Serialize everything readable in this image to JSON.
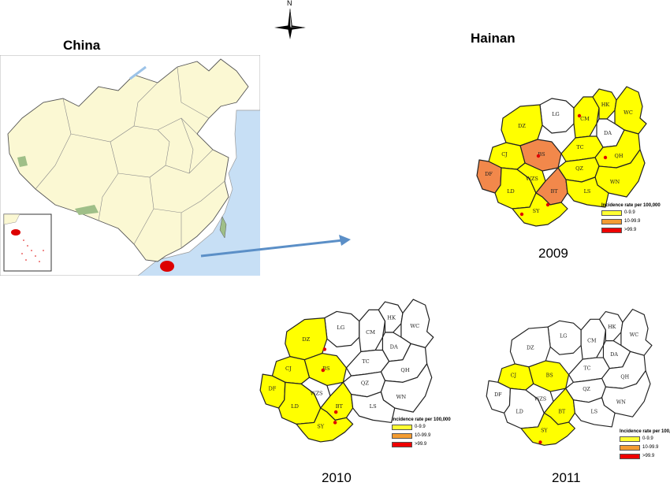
{
  "titles": {
    "left": "China",
    "right": "Hainan"
  },
  "compass_label": "N",
  "years": [
    "2009",
    "2010",
    "2011"
  ],
  "legend": {
    "title": "Incidence rate per 100,000",
    "items": [
      {
        "label": "0-9.9",
        "color": "#ffff33"
      },
      {
        "label": "10-99.9",
        "color": "#f39c32"
      },
      {
        "label": ">99.9",
        "color": "#ee0000"
      }
    ]
  },
  "colors": {
    "water": "#c7dff5",
    "land_china": "#fbf8d3",
    "hainan_highlight": "#dd0000",
    "arrow": "#5b8fc7",
    "low": "#ffff00",
    "mid": "#f2884b",
    "none": "#ffffff"
  },
  "counties": [
    "LG",
    "CM",
    "HK",
    "WC",
    "DZ",
    "DA",
    "BS",
    "TC",
    "CJ",
    "QH",
    "DF",
    "QZ",
    "WN",
    "LD",
    "WZS",
    "BT",
    "LS",
    "SY"
  ],
  "map_data": {
    "2009": {
      "LG": "none",
      "CM": "low",
      "HK": "low",
      "WC": "low",
      "DZ": "low",
      "DA": "none",
      "BS": "mid",
      "TC": "low",
      "CJ": "low",
      "QH": "low",
      "DF": "mid",
      "QZ": "low",
      "WN": "low",
      "LD": "low",
      "WZS": "low",
      "BT": "mid",
      "LS": "low",
      "SY": "low"
    },
    "2010": {
      "LG": "none",
      "CM": "none",
      "HK": "none",
      "WC": "none",
      "DZ": "low",
      "DA": "none",
      "BS": "low",
      "TC": "none",
      "CJ": "low",
      "QH": "none",
      "DF": "low",
      "QZ": "none",
      "WN": "none",
      "LD": "low",
      "WZS": "none",
      "BT": "low",
      "LS": "none",
      "SY": "low"
    },
    "2011": {
      "LG": "none",
      "CM": "none",
      "HK": "none",
      "WC": "none",
      "DZ": "none",
      "DA": "none",
      "BS": "low",
      "TC": "none",
      "CJ": "low",
      "QH": "none",
      "DF": "none",
      "QZ": "none",
      "WN": "none",
      "LD": "none",
      "WZS": "none",
      "BT": "low",
      "LS": "none",
      "SY": "low"
    }
  }
}
